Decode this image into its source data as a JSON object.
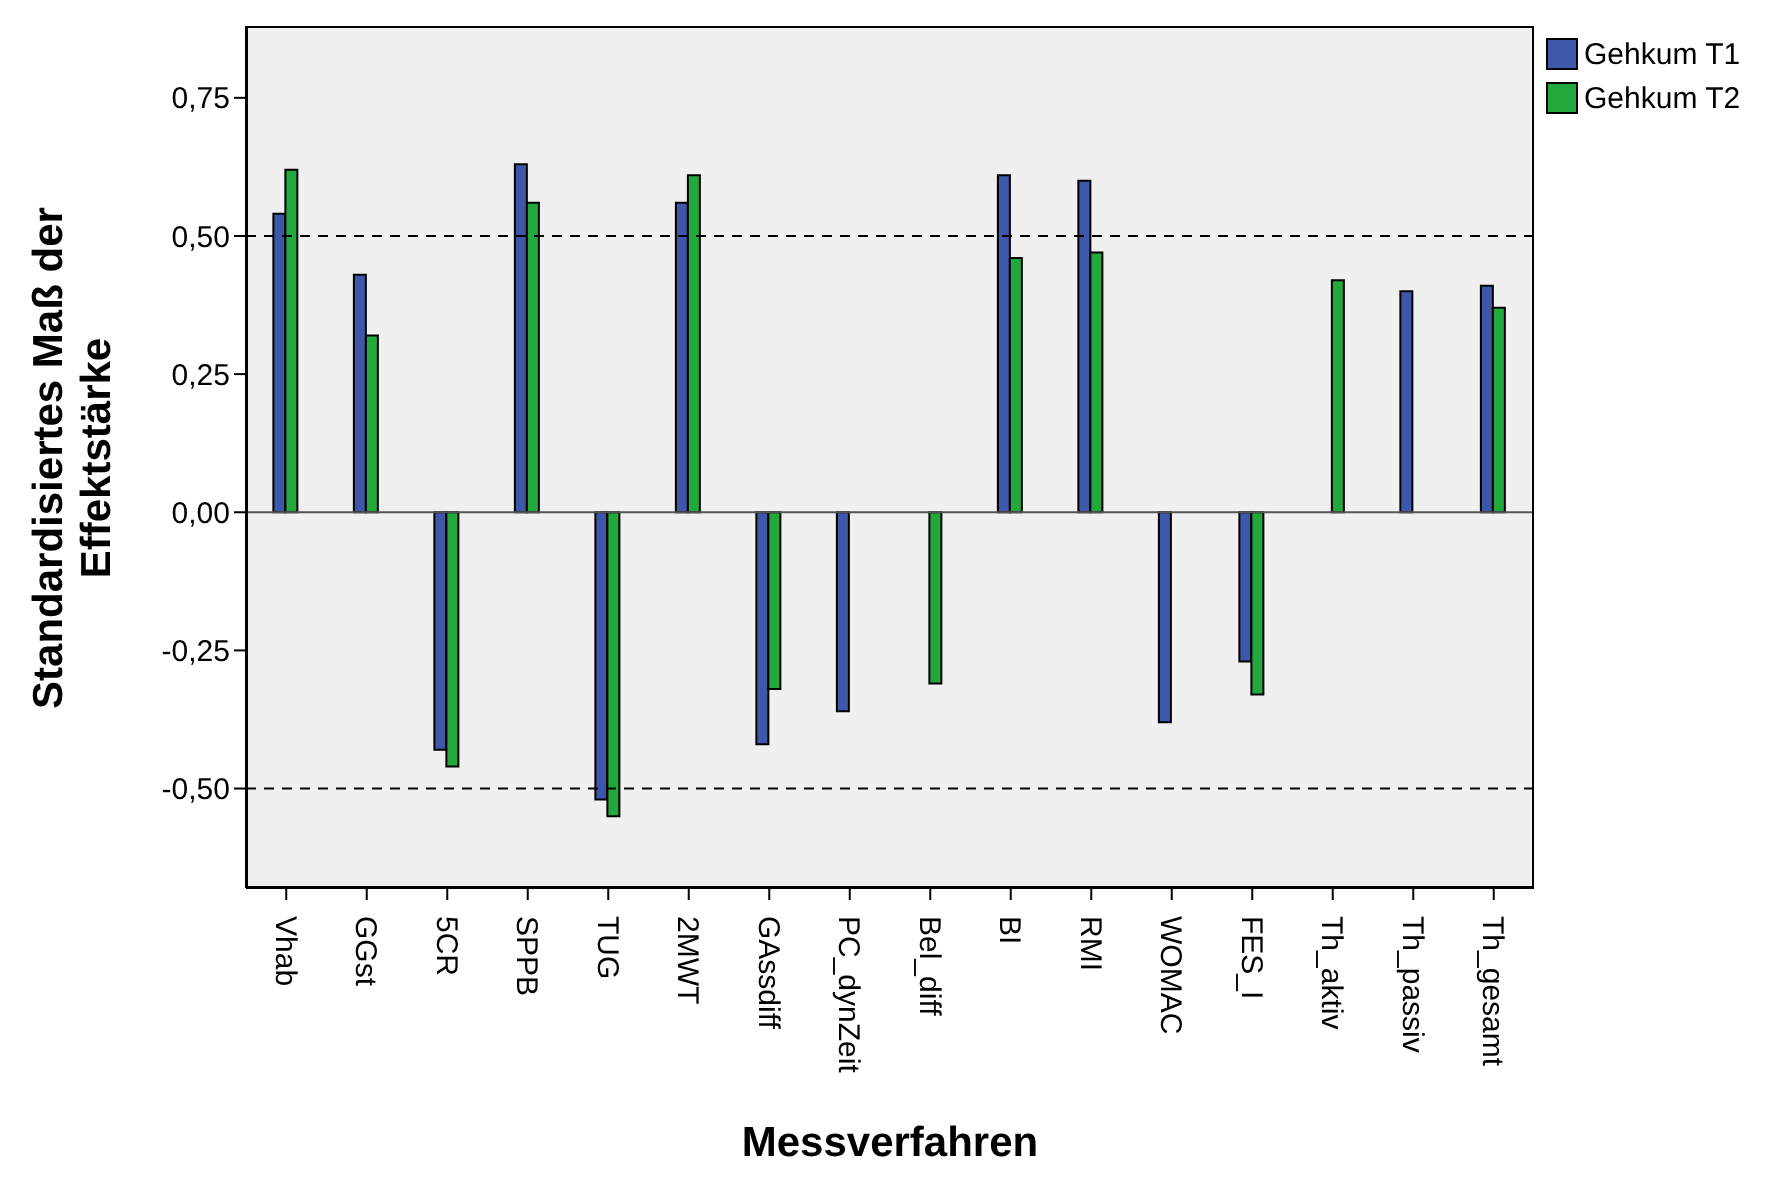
{
  "chart_data": {
    "type": "bar",
    "xlabel": "Messverfahren",
    "ylabel": "Standardisiertes Maß der Effektstärke",
    "categories": [
      "Vhab",
      "GGst",
      "5CR",
      "SPPB",
      "TUG",
      "2MWT",
      "GAssdiff",
      "PC_dynZeit",
      "Bel_diff",
      "BI",
      "RMI",
      "WOMAC",
      "FES_I",
      "Th_aktiv",
      "Th_passiv",
      "Th_gesamt"
    ],
    "series": [
      {
        "name": "Gehkum T1",
        "color": "#3f57a9",
        "values": [
          0.54,
          0.43,
          -0.43,
          0.63,
          -0.52,
          0.56,
          -0.42,
          -0.36,
          null,
          0.61,
          0.6,
          -0.38,
          -0.27,
          null,
          0.4,
          0.41
        ]
      },
      {
        "name": "Gehkum T2",
        "color": "#22a83c",
        "values": [
          0.62,
          0.32,
          -0.46,
          0.56,
          -0.55,
          0.61,
          -0.32,
          null,
          -0.31,
          0.46,
          0.47,
          null,
          -0.33,
          0.42,
          null,
          0.37
        ]
      }
    ],
    "ylim": [
      -0.68,
      0.88
    ],
    "yticks": [
      {
        "value": -0.5,
        "label": "-0,50"
      },
      {
        "value": -0.25,
        "label": "-0,25"
      },
      {
        "value": 0,
        "label": "0,00"
      },
      {
        "value": 0.25,
        "label": "0,25"
      },
      {
        "value": 0.5,
        "label": "0,50"
      },
      {
        "value": 0.75,
        "label": "0,75"
      }
    ],
    "ref_lines": [
      {
        "axis": "y",
        "value": 0.5,
        "line_style": "dashed",
        "color": "#000000"
      },
      {
        "axis": "y",
        "value": -0.5,
        "line_style": "dashed",
        "color": "#000000"
      },
      {
        "axis": "y",
        "value": 0,
        "line_style": "solid",
        "color": "#555555"
      }
    ],
    "grid": false,
    "legend": "top right"
  }
}
